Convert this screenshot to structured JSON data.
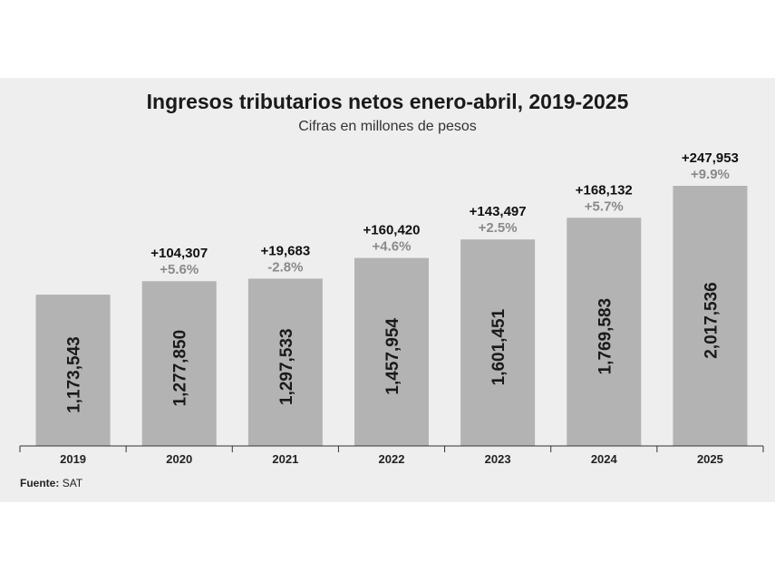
{
  "title": "Ingresos tributarios netos enero-abril, 2019-2025",
  "subtitle": "Cifras en millones de pesos",
  "source": {
    "label": "Fuente:",
    "value": "SAT"
  },
  "colors": {
    "background": "#eeeeee",
    "bar": "#b3b3b3",
    "bar_label": "#1a1a1a",
    "change_abs": "#111111",
    "change_pct": "#8a8a8a",
    "axis": "#333333"
  },
  "chart_data": {
    "type": "bar",
    "categories": [
      "2019",
      "2020",
      "2021",
      "2022",
      "2023",
      "2024",
      "2025"
    ],
    "values": [
      1173543,
      1277850,
      1297533,
      1457954,
      1601451,
      1769583,
      2017536
    ],
    "value_labels": [
      "1,173,543",
      "1,277,850",
      "1,297,533",
      "1,457,954",
      "1,601,451",
      "1,769,583",
      "2,017,536"
    ],
    "change_abs": [
      "",
      "+104,307",
      "+19,683",
      "+160,420",
      "+143,497",
      "+168,132",
      "+247,953"
    ],
    "change_pct": [
      "",
      "+5.6%",
      "-2.8%",
      "+4.6%",
      "+2.5%",
      "+5.7%",
      "+9.9%"
    ],
    "xlabel": "",
    "ylabel": "",
    "ylim": [
      0,
      2017536
    ],
    "grid": false,
    "legend": "none"
  }
}
